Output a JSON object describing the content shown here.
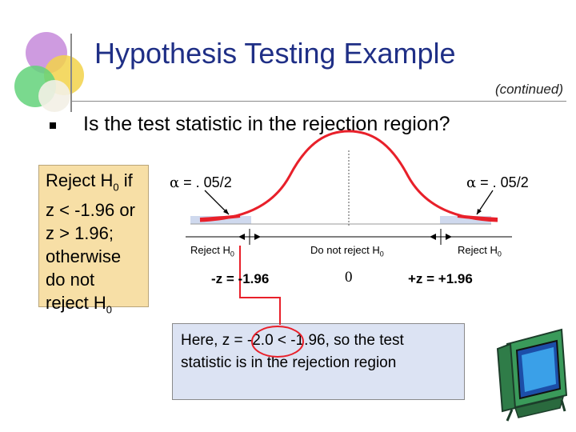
{
  "slide": {
    "title": "Hypothesis Testing Example",
    "continued": "(continued)",
    "question": "Is the test statistic in the rejection region?"
  },
  "rule_box": {
    "lines": [
      {
        "text": "Reject H",
        "sub": "0",
        "after": " if"
      },
      {
        "text": "z < -1.96 or",
        "sub": "",
        "after": ""
      },
      {
        "text": "z > 1.96;",
        "sub": "",
        "after": ""
      },
      {
        "text": "otherwise",
        "sub": "",
        "after": ""
      },
      {
        "text": "do not",
        "sub": "",
        "after": ""
      },
      {
        "text": "reject H",
        "sub": "0",
        "after": ""
      }
    ]
  },
  "distribution": {
    "alpha_symbol": "α",
    "alpha_left": " = . 05/2",
    "alpha_right": " = . 05/2",
    "reject_left": "Reject H",
    "reject_left_sub": "0",
    "do_not_reject": "Do not reject H",
    "do_not_reject_sub": "0",
    "reject_right": "Reject H",
    "reject_right_sub": "0",
    "z_left": "-z = -1.96",
    "center": "0",
    "z_right": "+z = +1.96",
    "colors": {
      "curve": "#e8202a",
      "tail_fill": "#cfd9ee",
      "highlight": "#e8202a",
      "circle": "#e8202a"
    }
  },
  "conclusion": {
    "line1": "Here, z = -2.0 < -1.96, so the test",
    "line2": "statistic is in the rejection region"
  },
  "decorations": {
    "logo_icon": "overlapping-colored-circles",
    "tv_icon": "television-clipart"
  }
}
